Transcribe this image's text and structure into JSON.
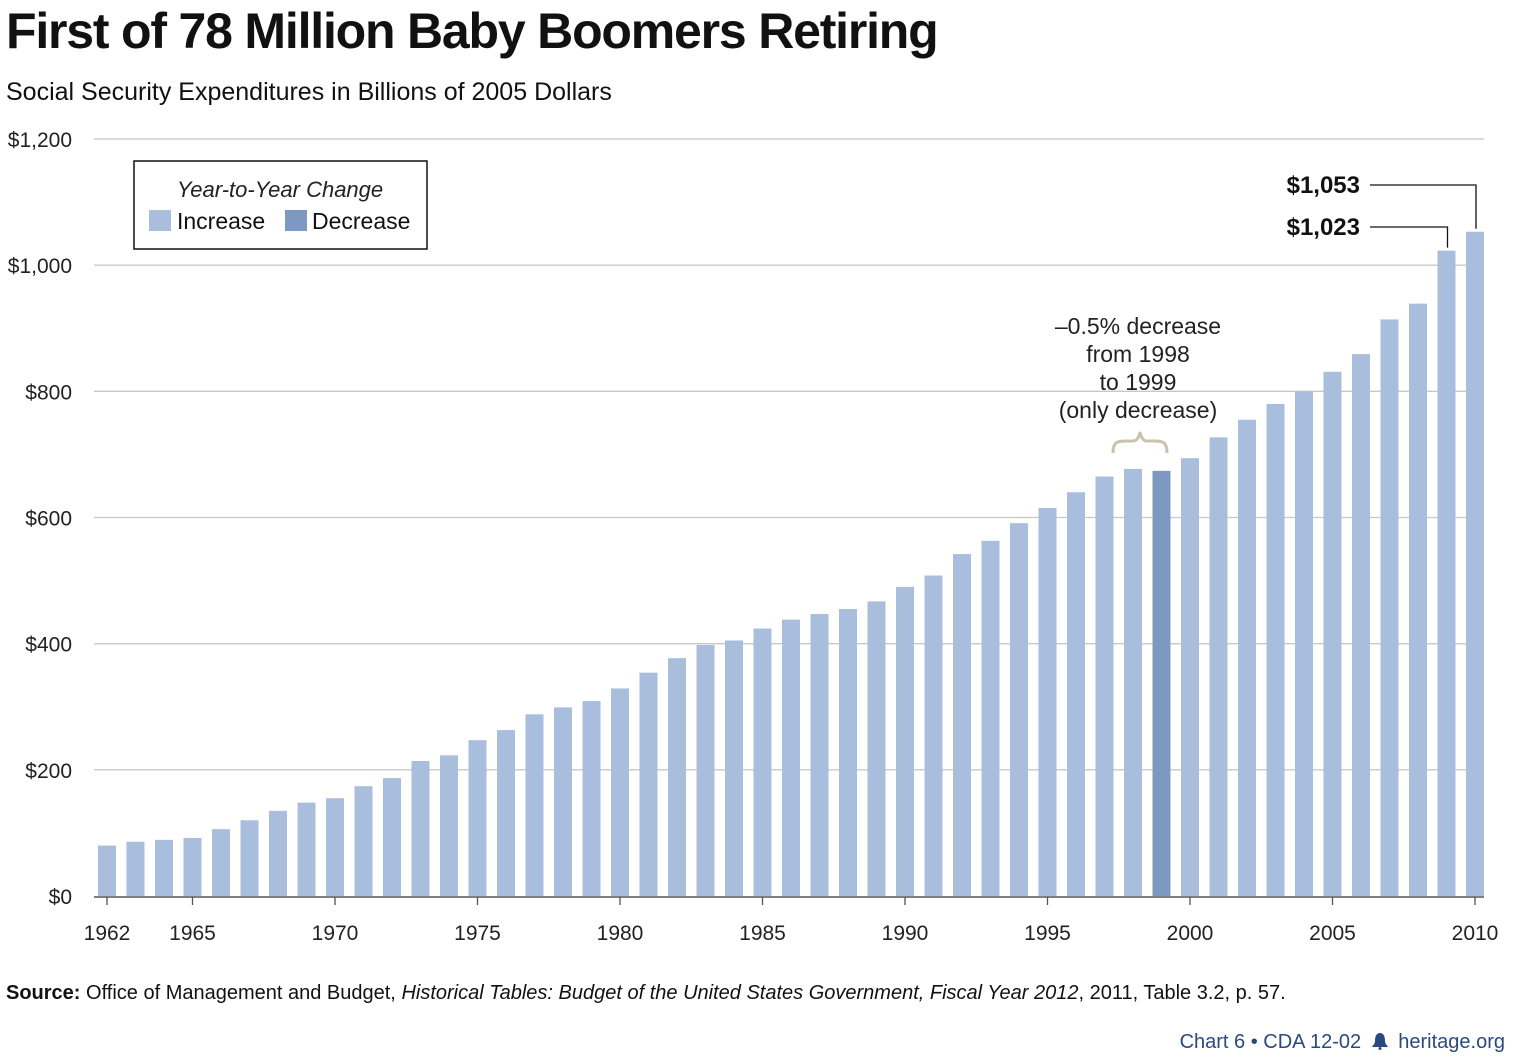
{
  "title": "First of 78 Million Baby Boomers Retiring",
  "subtitle": "Social Security Expenditures in Billions of 2005 Dollars",
  "colors": {
    "increase": "#a9bddd",
    "decrease": "#7d98c1",
    "grid": "#c8c8c8",
    "text": "#111111",
    "footer": "#2a4a7f"
  },
  "legend": {
    "title": "Year-to-Year Change",
    "increase_label": "Increase",
    "decrease_label": "Decrease",
    "placement": "top-left"
  },
  "annotations": {
    "decrease_note": [
      "–0.5% decrease",
      "from 1998",
      "to 1999",
      "(only decrease)"
    ],
    "label_1053": "$1,053",
    "label_1023": "$1,023"
  },
  "source": {
    "label": "Source:",
    "text_before": "Office of Management and Budget,",
    "italic": "Historical Tables: Budget of the United States Government, Fiscal Year 2012",
    "text_after": ", 2011, Table 3.2, p. 57."
  },
  "footer": {
    "chart_id": "Chart 6 • CDA 12-02",
    "site": "heritage.org",
    "icon": "liberty-bell-icon"
  },
  "chart_data": {
    "type": "bar",
    "title": "First of 78 Million Baby Boomers Retiring",
    "subtitle": "Social Security Expenditures in Billions of 2005 Dollars",
    "ylim": [
      0,
      1200
    ],
    "yticks": [
      0,
      200,
      400,
      600,
      800,
      1000,
      1200
    ],
    "ytick_labels": [
      "$0",
      "$200",
      "$400",
      "$600",
      "$800",
      "$1,000",
      "$1,200"
    ],
    "xtick_labels": [
      "1962",
      "1965",
      "1970",
      "1975",
      "1980",
      "1985",
      "1990",
      "1995",
      "2000",
      "2005",
      "2010"
    ],
    "grid": true,
    "categories": [
      1962,
      1963,
      1964,
      1965,
      1966,
      1967,
      1968,
      1969,
      1970,
      1971,
      1972,
      1973,
      1974,
      1975,
      1976,
      1977,
      1978,
      1979,
      1980,
      1981,
      1982,
      1983,
      1984,
      1985,
      1986,
      1987,
      1988,
      1989,
      1990,
      1991,
      1992,
      1993,
      1994,
      1995,
      1996,
      1997,
      1998,
      1999,
      2000,
      2001,
      2002,
      2003,
      2004,
      2005,
      2006,
      2007,
      2008,
      2009,
      2010
    ],
    "values": [
      80,
      86,
      89,
      92,
      106,
      120,
      135,
      148,
      155,
      174,
      187,
      214,
      223,
      247,
      263,
      288,
      299,
      309,
      329,
      354,
      377,
      398,
      405,
      424,
      438,
      447,
      455,
      467,
      490,
      508,
      542,
      563,
      591,
      615,
      640,
      665,
      677,
      674,
      694,
      727,
      755,
      780,
      800,
      831,
      859,
      914,
      939,
      1023,
      1053
    ],
    "decrease_years": [
      1999
    ]
  }
}
